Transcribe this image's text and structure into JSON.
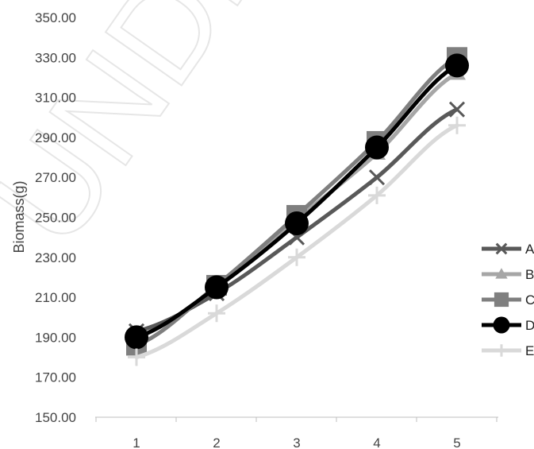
{
  "watermark": "UNDER P",
  "chart_data": {
    "type": "line",
    "title": "",
    "xlabel": "",
    "ylabel": "Biomass(g)",
    "categories": [
      "1",
      "2",
      "3",
      "4",
      "5"
    ],
    "ylim": [
      150,
      350
    ],
    "ytick_step": 20,
    "y_tick_labels": [
      "150.00",
      "170.00",
      "190.00",
      "210.00",
      "230.00",
      "250.00",
      "270.00",
      "290.00",
      "310.00",
      "330.00",
      "350.00"
    ],
    "grid": false,
    "legend_position": "right",
    "series": [
      {
        "name": "A",
        "values": [
          193,
          212,
          240,
          270,
          304
        ],
        "color": "#595959",
        "marker": "x"
      },
      {
        "name": "B",
        "values": [
          190,
          215,
          249,
          282,
          322
        ],
        "color": "#a6a6a6",
        "marker": "triangle"
      },
      {
        "name": "C",
        "values": [
          186,
          216,
          251,
          288,
          330
        ],
        "color": "#7f7f7f",
        "marker": "square"
      },
      {
        "name": "D",
        "values": [
          190,
          215,
          247,
          285,
          326
        ],
        "color": "#000000",
        "marker": "circle"
      },
      {
        "name": "E",
        "values": [
          180,
          202,
          230,
          261,
          296
        ],
        "color": "#d9d9d9",
        "marker": "plus"
      }
    ]
  }
}
